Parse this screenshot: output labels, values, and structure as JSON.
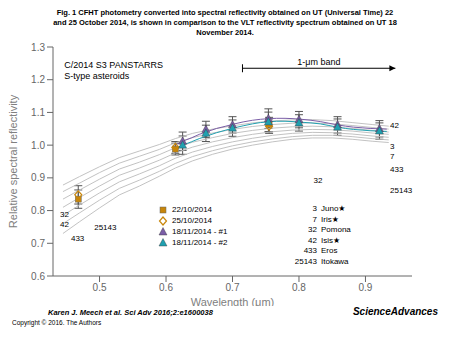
{
  "chart_data": {
    "type": "line",
    "title": "Fig. 1 CFHT photometry converted into spectral reflectivity obtained on UT (Universal Time) 22\nand 25 October 2014, is shown in comparison to the VLT reflectivity spectrum obtained on UT 18\nNovember 2014.",
    "x_label": "Wavelength (μm)",
    "y_label": "Relative spectral reflectivity",
    "xlim": [
      0.43,
      0.97
    ],
    "ylim": [
      0.6,
      1.3
    ],
    "xticks": [
      0.5,
      0.6,
      0.7,
      0.8,
      0.9
    ],
    "yticks": [
      0.6,
      0.7,
      0.8,
      0.9,
      {
        "value": 1,
        "label": "1.0"
      },
      1.1,
      1.2,
      1.3
    ],
    "grid": false,
    "legend": "lower right",
    "series": [
      {
        "type": "line",
        "color": "#bbbbbb",
        "x": [
          0.445,
          0.47,
          0.5,
          0.53,
          0.56,
          0.59,
          0.614,
          0.64,
          0.67,
          0.7,
          0.73,
          0.76,
          0.79,
          0.82,
          0.85,
          0.88,
          0.91,
          0.935
        ],
        "values": [
          0.73,
          0.766,
          0.808,
          0.848,
          0.875,
          0.905,
          0.93,
          0.952,
          0.972,
          0.988,
          1.0,
          1.01,
          1.018,
          1.022,
          1.022,
          1.018,
          1.012,
          1.008
        ]
      },
      {
        "type": "line",
        "color": "#bbbbbb",
        "x": [
          0.445,
          0.47,
          0.5,
          0.53,
          0.56,
          0.59,
          0.614,
          0.64,
          0.67,
          0.7,
          0.73,
          0.76,
          0.79,
          0.82,
          0.85,
          0.88,
          0.91,
          0.935
        ],
        "values": [
          0.76,
          0.793,
          0.832,
          0.868,
          0.893,
          0.92,
          0.944,
          0.965,
          0.983,
          0.998,
          1.01,
          1.019,
          1.026,
          1.03,
          1.03,
          1.026,
          1.02,
          1.016
        ]
      },
      {
        "type": "line",
        "color": "#bbbbbb",
        "x": [
          0.445,
          0.47,
          0.5,
          0.53,
          0.56,
          0.59,
          0.614,
          0.64,
          0.67,
          0.7,
          0.73,
          0.76,
          0.79,
          0.82,
          0.85,
          0.88,
          0.91,
          0.935
        ],
        "values": [
          0.785,
          0.817,
          0.854,
          0.888,
          0.912,
          0.937,
          0.96,
          0.979,
          0.996,
          1.01,
          1.021,
          1.03,
          1.036,
          1.039,
          1.038,
          1.034,
          1.028,
          1.024
        ]
      },
      {
        "type": "line",
        "color": "#bbbbbb",
        "x": [
          0.445,
          0.47,
          0.5,
          0.53,
          0.56,
          0.59,
          0.614,
          0.64,
          0.67,
          0.7,
          0.73,
          0.76,
          0.79,
          0.82,
          0.85,
          0.88,
          0.91,
          0.935
        ],
        "values": [
          0.81,
          0.84,
          0.875,
          0.908,
          0.93,
          0.954,
          0.976,
          0.994,
          1.01,
          1.023,
          1.033,
          1.041,
          1.046,
          1.048,
          1.047,
          1.043,
          1.037,
          1.033
        ]
      },
      {
        "type": "line",
        "color": "#bbbbbb",
        "x": [
          0.445,
          0.47,
          0.5,
          0.53,
          0.56,
          0.59,
          0.614,
          0.64,
          0.67,
          0.7,
          0.73,
          0.76,
          0.79,
          0.82,
          0.85,
          0.88,
          0.91,
          0.935
        ],
        "values": [
          0.835,
          0.863,
          0.896,
          0.927,
          0.948,
          0.971,
          0.992,
          1.009,
          1.023,
          1.036,
          1.045,
          1.052,
          1.056,
          1.058,
          1.056,
          1.051,
          1.045,
          1.04
        ]
      },
      {
        "type": "line",
        "color": "#bbbbbb",
        "x": [
          0.445,
          0.47,
          0.5,
          0.53,
          0.56,
          0.59,
          0.614,
          0.64,
          0.67,
          0.7,
          0.73,
          0.76,
          0.79,
          0.82,
          0.85,
          0.88,
          0.91,
          0.935
        ],
        "values": [
          0.858,
          0.884,
          0.916,
          0.945,
          0.966,
          0.987,
          1.007,
          1.023,
          1.037,
          1.048,
          1.057,
          1.063,
          1.067,
          1.068,
          1.065,
          1.06,
          1.054,
          1.049
        ]
      },
      {
        "type": "line",
        "color": "#bbbbbb",
        "x": [
          0.445,
          0.47,
          0.5,
          0.53,
          0.56,
          0.59,
          0.614,
          0.64,
          0.67,
          0.7,
          0.73,
          0.76,
          0.79,
          0.82,
          0.85,
          0.88,
          0.91,
          0.935
        ],
        "values": [
          0.878,
          0.904,
          0.934,
          0.962,
          0.982,
          1.002,
          1.02,
          1.036,
          1.049,
          1.059,
          1.068,
          1.074,
          1.077,
          1.078,
          1.075,
          1.069,
          1.063,
          1.058
        ]
      },
      {
        "name": "22/10/2014",
        "type": "scatter",
        "marker": "square",
        "color": "#c8860a",
        "x": [
          0.468,
          0.614,
          0.755
        ],
        "values": [
          0.835,
          0.988,
          1.063
        ],
        "errors": [
          0.028,
          0.018,
          0.022
        ]
      },
      {
        "name": "25/10/2014",
        "type": "scatter",
        "marker": "open_diamond",
        "color": "#c8860a",
        "x": [
          0.468,
          0.614,
          0.755
        ],
        "values": [
          0.848,
          0.993,
          1.058
        ],
        "errors": [
          0.028,
          0.018,
          0.022
        ]
      },
      {
        "name": "18/11/2014 - #1",
        "type": "line",
        "marker": "triangle",
        "color": "#7b5ea7",
        "x": [
          0.614,
          0.625,
          0.638,
          0.65,
          0.663,
          0.676,
          0.69,
          0.703,
          0.716,
          0.73,
          0.742,
          0.754,
          0.766,
          0.779,
          0.791,
          0.804,
          0.818,
          0.832,
          0.845,
          0.858,
          0.87,
          0.882,
          0.895,
          0.907,
          0.92,
          0.932
        ],
        "values": [
          1.0,
          1.012,
          1.022,
          1.033,
          1.042,
          1.051,
          1.058,
          1.065,
          1.071,
          1.076,
          1.079,
          1.081,
          1.082,
          1.082,
          1.081,
          1.079,
          1.076,
          1.072,
          1.067,
          1.062,
          1.058,
          1.055,
          1.053,
          1.051,
          1.05,
          1.049
        ],
        "marker_x": [
          0.625,
          0.66,
          0.7,
          0.754,
          0.8,
          0.858,
          0.921
        ],
        "marker_values": [
          1.012,
          1.048,
          1.062,
          1.081,
          1.078,
          1.062,
          1.05
        ],
        "errors": [
          0.028,
          0.025,
          0.025,
          0.03,
          0.025,
          0.025,
          0.025
        ]
      },
      {
        "name": "18/11/2014 - #2",
        "type": "line",
        "marker": "triangle",
        "color": "#20a0b0",
        "x": [
          0.614,
          0.625,
          0.638,
          0.65,
          0.663,
          0.676,
          0.69,
          0.703,
          0.716,
          0.73,
          0.742,
          0.754,
          0.766,
          0.779,
          0.791,
          0.804,
          0.818,
          0.832,
          0.845,
          0.858,
          0.87,
          0.882,
          0.895,
          0.907,
          0.92,
          0.932
        ],
        "values": [
          0.99,
          1.0,
          1.01,
          1.02,
          1.029,
          1.038,
          1.046,
          1.053,
          1.059,
          1.065,
          1.069,
          1.071,
          1.073,
          1.073,
          1.072,
          1.07,
          1.068,
          1.065,
          1.06,
          1.055,
          1.051,
          1.048,
          1.046,
          1.044,
          1.043,
          1.042
        ],
        "marker_x": [
          0.625,
          0.66,
          0.7,
          0.754,
          0.8,
          0.858,
          0.921
        ],
        "marker_values": [
          1.0,
          1.036,
          1.052,
          1.071,
          1.068,
          1.055,
          1.043
        ],
        "errors": [
          0.028,
          0.025,
          0.025,
          0.03,
          0.025,
          0.025,
          0.025
        ]
      }
    ],
    "band": {
      "label": "1-μm band",
      "x": [
        0.715,
        0.945
      ]
    },
    "annotations": [
      "C/2014 S3 PANSTARRS\nS-type asteroids",
      "42",
      "3",
      "7",
      "433",
      "32",
      "25143",
      "32",
      "42",
      "25143",
      "433",
      "Karen J. Meech et al. Sci Adv 2016;2:e1600038",
      "Copyright © 2016. The Authors",
      "Science",
      "Advances"
    ],
    "asteroids": [
      {
        "num": "3",
        "name": "Juno★"
      },
      {
        "num": "7",
        "name": "Iris★"
      },
      {
        "num": "32",
        "name": "Pomona"
      },
      {
        "num": "42",
        "name": "Isis★"
      },
      {
        "num": "433",
        "name": "Eros"
      },
      {
        "num": "25143",
        "name": "Itokawa"
      }
    ]
  }
}
